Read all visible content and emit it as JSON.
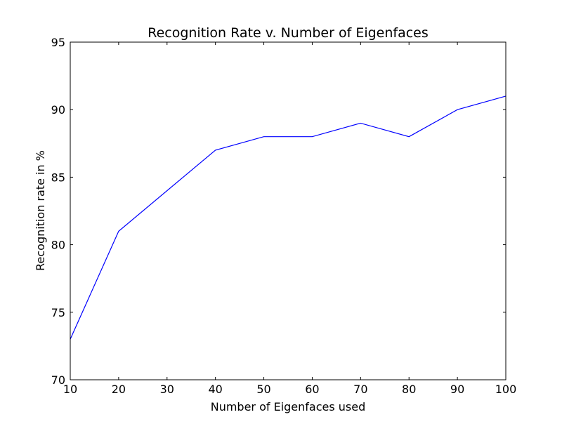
{
  "chart_data": {
    "type": "line",
    "title": "Recognition Rate v. Number of Eigenfaces",
    "xlabel": "Number of Eigenfaces used",
    "ylabel": "Recognition rate in %",
    "xlim": [
      10,
      100
    ],
    "ylim": [
      70,
      95
    ],
    "xticks": [
      10,
      20,
      30,
      40,
      50,
      60,
      70,
      80,
      90,
      100
    ],
    "yticks": [
      70,
      75,
      80,
      85,
      90,
      95
    ],
    "grid": false,
    "series": [
      {
        "color": "#0000ff",
        "x": [
          10,
          20,
          40,
          50,
          60,
          70,
          80,
          90,
          100
        ],
        "y": [
          73,
          81,
          87,
          88,
          88,
          89,
          88,
          90,
          91
        ]
      }
    ]
  }
}
